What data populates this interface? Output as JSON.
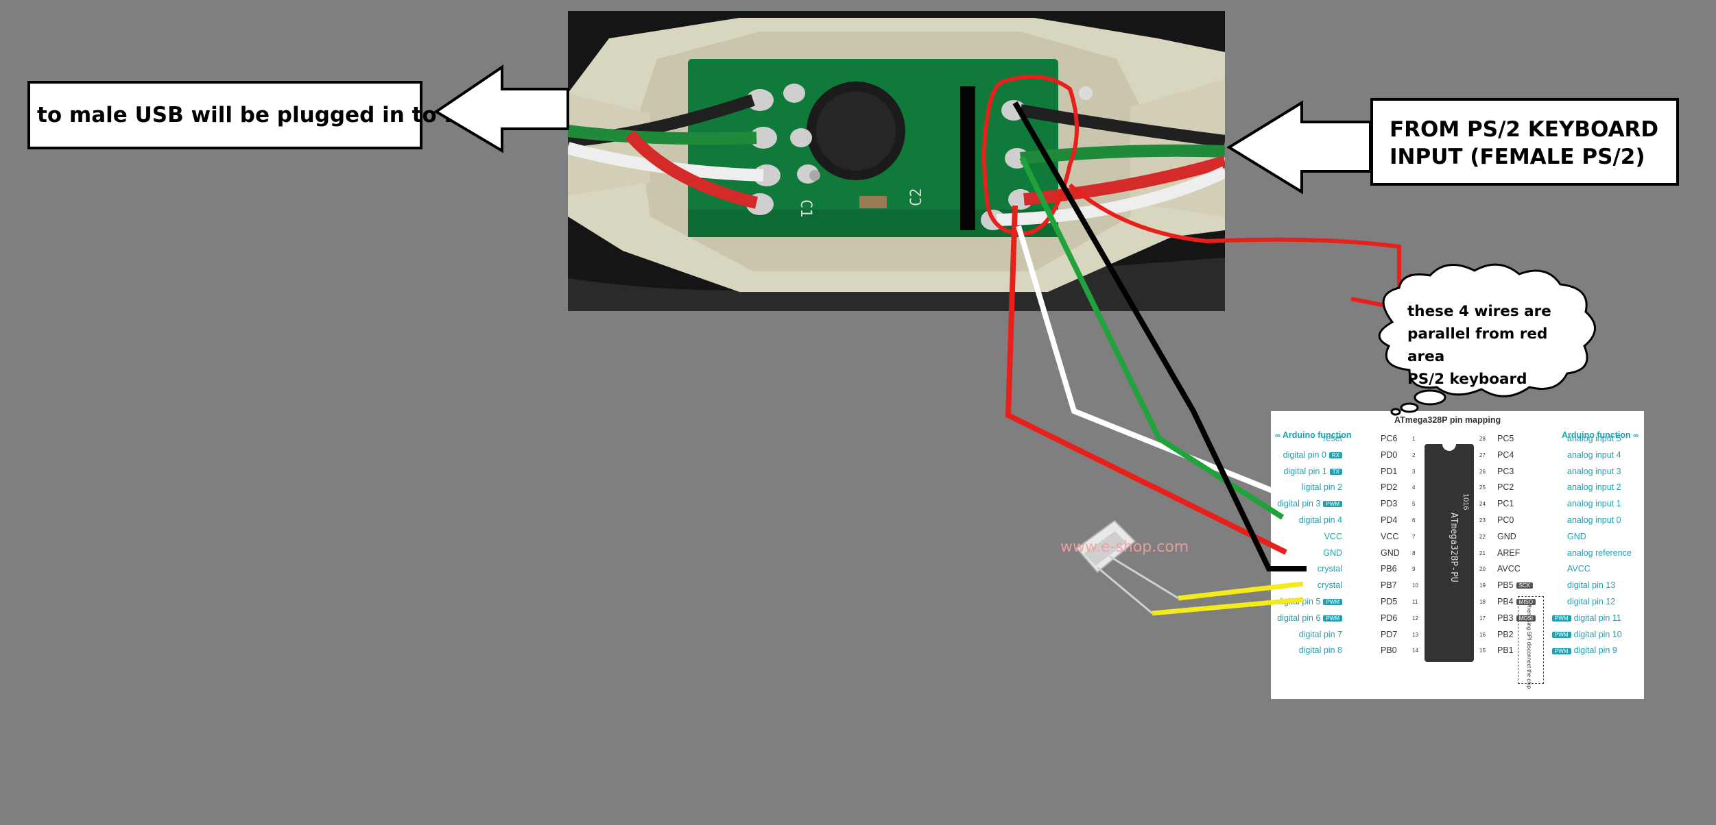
{
  "labels": {
    "usb": "to male USB will be plugged in to PC",
    "ps2_line1": "FROM PS/2 KEYBOARD",
    "ps2_line2": "INPUT (FEMALE PS/2)",
    "cloud_line1": "these 4 wires are",
    "cloud_line2": "parallel from red area",
    "cloud_line3": "PS/2 keyboard"
  },
  "pcb": {
    "c1": "C1",
    "c2": "C2"
  },
  "watermark": "www.e-shop.com",
  "pinmap": {
    "title": "ATmega328P pin mapping",
    "left_header": "Arduino function",
    "right_header": "Arduino function",
    "chip_label": "ATmega328P-PU",
    "chip_code": "1016",
    "note": "When using SPI disconnect the chip",
    "left": [
      {
        "func": "reset",
        "pin": "PC6",
        "num": "1"
      },
      {
        "func": "digital pin 0",
        "badge": "RX",
        "pin": "PD0",
        "num": "2"
      },
      {
        "func": "digital pin 1",
        "badge": "TX",
        "pin": "PD1",
        "num": "3"
      },
      {
        "func": "ligital pin 2",
        "pin": "PD2",
        "num": "4"
      },
      {
        "func": "digital pin 3",
        "badge": "PWM",
        "pin": "PD3",
        "num": "5"
      },
      {
        "func": "digital pin 4",
        "pin": "PD4",
        "num": "6"
      },
      {
        "func": "VCC",
        "pin": "VCC",
        "num": "7"
      },
      {
        "func": "GND",
        "pin": "GND",
        "num": "8"
      },
      {
        "func": "crystal",
        "pin": "PB6",
        "num": "9"
      },
      {
        "func": "crystal",
        "pin": "PB7",
        "num": "10"
      },
      {
        "func": "digital pin 5",
        "badge": "PWM",
        "pin": "PD5",
        "num": "11"
      },
      {
        "func": "digital pin 6",
        "badge": "PWM",
        "pin": "PD6",
        "num": "12"
      },
      {
        "func": "digital pin 7",
        "pin": "PD7",
        "num": "13"
      },
      {
        "func": "digital pin 8",
        "pin": "PB0",
        "num": "14"
      }
    ],
    "right": [
      {
        "num": "28",
        "pin": "PC5",
        "func": "analog input 5"
      },
      {
        "num": "27",
        "pin": "PC4",
        "func": "analog input 4"
      },
      {
        "num": "26",
        "pin": "PC3",
        "func": "analog input 3"
      },
      {
        "num": "25",
        "pin": "PC2",
        "func": "analog input 2"
      },
      {
        "num": "24",
        "pin": "PC1",
        "func": "analog input 1"
      },
      {
        "num": "23",
        "pin": "PC0",
        "func": "analog input 0"
      },
      {
        "num": "22",
        "pin": "GND",
        "func": "GND"
      },
      {
        "num": "21",
        "pin": "AREF",
        "func": "analog reference"
      },
      {
        "num": "20",
        "pin": "AVCC",
        "func": "AVCC"
      },
      {
        "num": "19",
        "pin": "PB5",
        "badge": "SCK",
        "func": "digital pin 13"
      },
      {
        "num": "18",
        "pin": "PB4",
        "badge": "MISO",
        "func": "digital pin 12"
      },
      {
        "num": "17",
        "pin": "PB3",
        "badge": "MOSI",
        "pwm": "PWM",
        "func": "digital pin 11"
      },
      {
        "num": "16",
        "pin": "PB2",
        "pwm": "PWM",
        "func": "digital pin 10"
      },
      {
        "num": "15",
        "pin": "PB1",
        "pwm": "PWM",
        "func": "digital pin 9"
      }
    ]
  },
  "colors": {
    "background": "#7f7f7f",
    "wire_red": "#e8201c",
    "wire_green": "#1fa33a",
    "wire_white": "#ffffff",
    "wire_black": "#000000",
    "wire_yellow": "#f4ea1c",
    "teal": "#20a0b0"
  }
}
